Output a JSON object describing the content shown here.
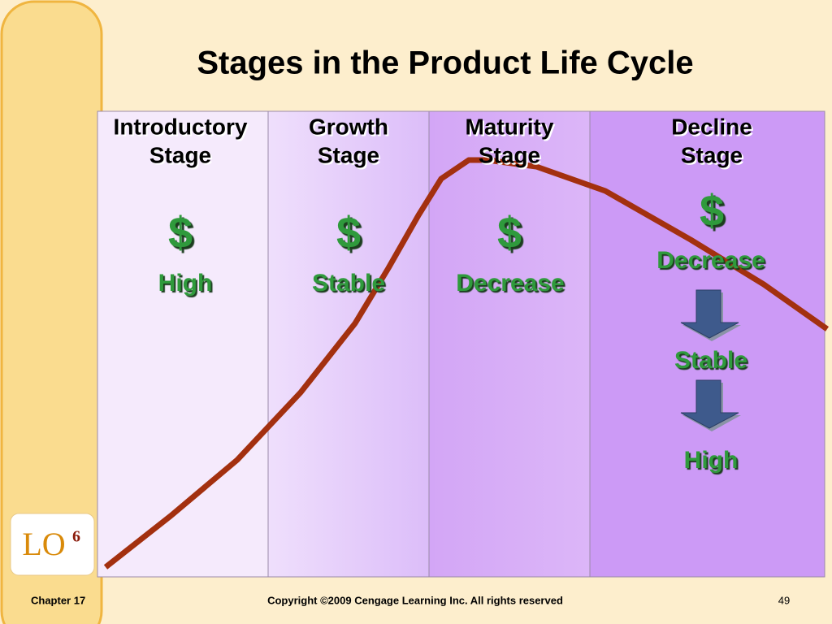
{
  "title": "Stages in the Product Life Cycle",
  "stages": [
    {
      "heading": [
        "Introductory",
        "Stage"
      ],
      "symbol": "$",
      "labels": [
        "High"
      ]
    },
    {
      "heading": [
        "Growth",
        "Stage"
      ],
      "symbol": "$",
      "labels": [
        "Stable"
      ]
    },
    {
      "heading": [
        "Maturity",
        "Stage"
      ],
      "symbol": "$",
      "labels": [
        "Decrease"
      ]
    },
    {
      "heading": [
        "Decline",
        "Stage"
      ],
      "symbol": "$",
      "labels": [
        "Decrease",
        "Stable",
        "High"
      ]
    }
  ],
  "badge": {
    "text": "LO",
    "superscript": "6"
  },
  "footer": {
    "chapter": "Chapter 17",
    "copyright": "Copyright ©2009 Cengage Learning Inc.  All rights reserved",
    "page": "49"
  }
}
